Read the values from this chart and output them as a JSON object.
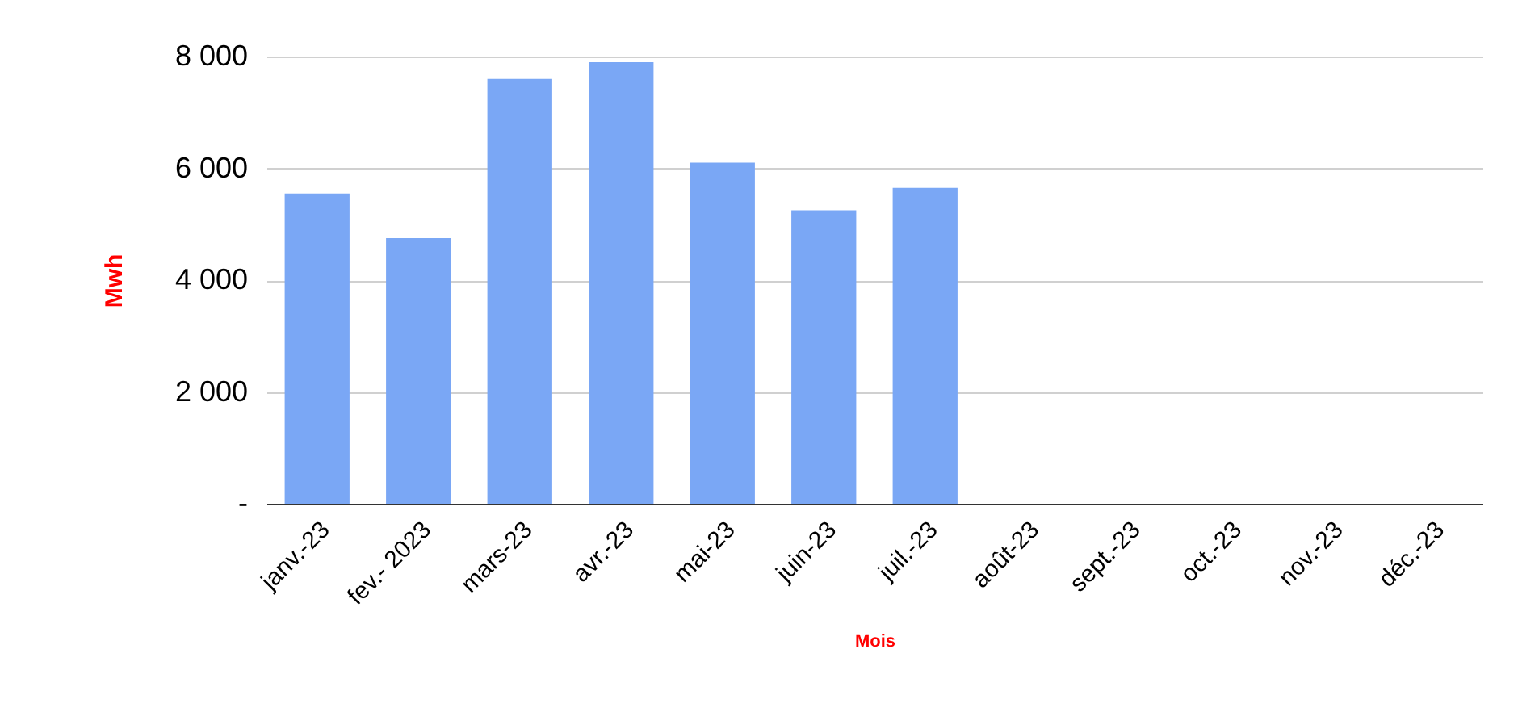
{
  "chart_data": {
    "type": "bar",
    "xlabel": "Mois",
    "ylabel": "Mwh",
    "categories": [
      "janv.-23",
      "fev.- 2023",
      "mars-23",
      "avr.-23",
      "mai-23",
      "juin-23",
      "juil.-23",
      "août-23",
      "sept.-23",
      "oct.-23",
      "nov.-23",
      "déc.-23"
    ],
    "values": [
      5550,
      4750,
      7600,
      7900,
      6100,
      5250,
      5650,
      null,
      null,
      null,
      null,
      null
    ],
    "color": "#7aa7f5",
    "ylim": [
      0,
      8000
    ],
    "yticks": [
      {
        "value": 0,
        "label": "-"
      },
      {
        "value": 2000,
        "label": "2 000"
      },
      {
        "value": 4000,
        "label": "4 000"
      },
      {
        "value": 6000,
        "label": "6 000"
      },
      {
        "value": 8000,
        "label": "8 000"
      }
    ],
    "grid": "y"
  }
}
